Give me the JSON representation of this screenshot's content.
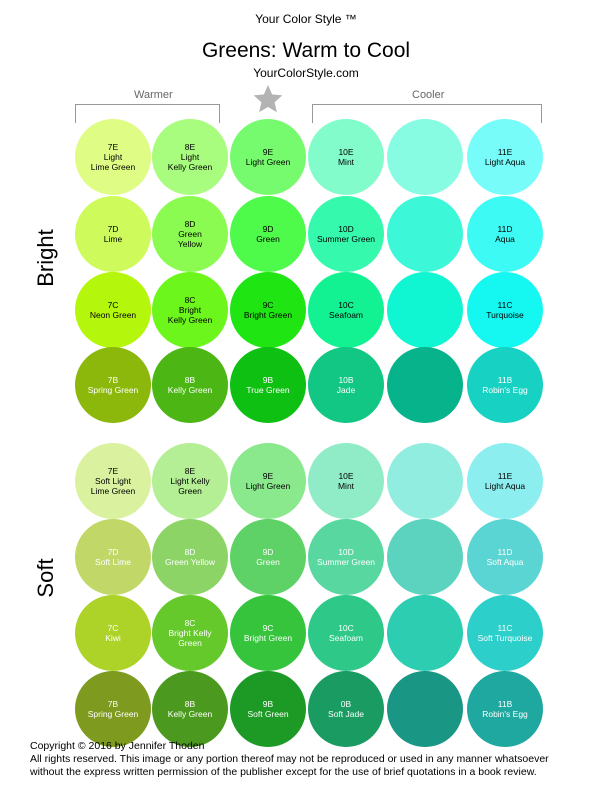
{
  "header": {
    "brand": "Your Color Style ™",
    "title": "Greens: Warm to Cool",
    "site": "YourColorStyle.com",
    "warmer_label": "Warmer",
    "cooler_label": "Cooler"
  },
  "sections": {
    "bright_label": "Bright",
    "soft_label": "Soft"
  },
  "colors": {
    "star": "#b3b3b3",
    "bracket": "#999999"
  },
  "swatches": [
    {
      "code": "7E",
      "name": "Light\nLime Green",
      "color": "#dffc85",
      "text": "#000000"
    },
    {
      "code": "8E",
      "name": "Light\nKelly Green",
      "color": "#a8fc7e",
      "text": "#000000"
    },
    {
      "code": "9E",
      "name": "Light Green",
      "color": "#77fb6e",
      "text": "#000000"
    },
    {
      "code": "10E",
      "name": "Mint",
      "color": "#82fccb",
      "text": "#000000"
    },
    {
      "code": "",
      "name": "",
      "color": "#88fce3",
      "text": "#000000"
    },
    {
      "code": "11E",
      "name": "Light Aqua",
      "color": "#78fcfa",
      "text": "#000000"
    },
    {
      "code": "7D",
      "name": "Lime",
      "color": "#cefb5b",
      "text": "#000000"
    },
    {
      "code": "8D",
      "name": "Green\nYellow",
      "color": "#8cfb51",
      "text": "#000000"
    },
    {
      "code": "9D",
      "name": "Green",
      "color": "#4efa4a",
      "text": "#000000"
    },
    {
      "code": "10D",
      "name": "Summer Green",
      "color": "#35f9ad",
      "text": "#000000"
    },
    {
      "code": "",
      "name": "",
      "color": "#3cf7d8",
      "text": "#000000"
    },
    {
      "code": "11D",
      "name": "Aqua",
      "color": "#3efaf4",
      "text": "#000000"
    },
    {
      "code": "7C",
      "name": "Neon Green",
      "color": "#b4f60c",
      "text": "#000000"
    },
    {
      "code": "8C",
      "name": "Bright\nKelly Green",
      "color": "#6cf61c",
      "text": "#000000"
    },
    {
      "code": "9C",
      "name": "Bright Green",
      "color": "#1fe513",
      "text": "#000000"
    },
    {
      "code": "10C",
      "name": "Seafoam",
      "color": "#12f293",
      "text": "#000000"
    },
    {
      "code": "",
      "name": "",
      "color": "#10f6d2",
      "text": "#000000"
    },
    {
      "code": "11C",
      "name": "Turquoise",
      "color": "#14f8f1",
      "text": "#000000"
    },
    {
      "code": "7B",
      "name": "Spring Green",
      "color": "#8cb80b",
      "text": "#ffffff"
    },
    {
      "code": "8B",
      "name": "Kelly Green",
      "color": "#4cb614",
      "text": "#ffffff"
    },
    {
      "code": "9B",
      "name": "True Green",
      "color": "#0ec012",
      "text": "#ffffff"
    },
    {
      "code": "10B",
      "name": "Jade",
      "color": "#12c683",
      "text": "#ffffff"
    },
    {
      "code": "",
      "name": "",
      "color": "#07b38b",
      "text": "#ffffff"
    },
    {
      "code": "11B",
      "name": "Robin's Egg",
      "color": "#17d1c3",
      "text": "#ffffff"
    },
    {
      "code": "7E",
      "name": "Soft Light\nLime Green",
      "color": "#daf29f",
      "text": "#000000"
    },
    {
      "code": "8E",
      "name": "Light Kelly\nGreen",
      "color": "#b4ee95",
      "text": "#000000"
    },
    {
      "code": "9E",
      "name": "Light Green",
      "color": "#8be98d",
      "text": "#000000"
    },
    {
      "code": "10E",
      "name": "Mint",
      "color": "#90ecc7",
      "text": "#000000"
    },
    {
      "code": "",
      "name": "",
      "color": "#91ede0",
      "text": "#000000"
    },
    {
      "code": "11E",
      "name": "Light Aqua",
      "color": "#8ceeee",
      "text": "#000000"
    },
    {
      "code": "7D",
      "name": "Soft Lime",
      "color": "#c1d868",
      "text": "#ffffff"
    },
    {
      "code": "8D",
      "name": "Green Yellow",
      "color": "#8dd467",
      "text": "#ffffff"
    },
    {
      "code": "9D",
      "name": "Green",
      "color": "#5ed266",
      "text": "#ffffff"
    },
    {
      "code": "10D",
      "name": "Summer Green",
      "color": "#58d7a1",
      "text": "#ffffff"
    },
    {
      "code": "",
      "name": "",
      "color": "#5bd3be",
      "text": "#ffffff"
    },
    {
      "code": "11D",
      "name": "Soft Aqua",
      "color": "#5bd5d3",
      "text": "#ffffff"
    },
    {
      "code": "7C",
      "name": "Kiwi",
      "color": "#aed328",
      "text": "#ffffff"
    },
    {
      "code": "8C",
      "name": "Bright Kelly\nGreen",
      "color": "#66c92b",
      "text": "#ffffff"
    },
    {
      "code": "9C",
      "name": "Bright Green",
      "color": "#36c43d",
      "text": "#ffffff"
    },
    {
      "code": "10C",
      "name": "Seafoam",
      "color": "#2ec989",
      "text": "#ffffff"
    },
    {
      "code": "",
      "name": "",
      "color": "#2ccdb1",
      "text": "#ffffff"
    },
    {
      "code": "11C",
      "name": "Soft Turquoise",
      "color": "#2ccfca",
      "text": "#ffffff"
    },
    {
      "code": "7B",
      "name": "Spring Green",
      "color": "#7e9a1f",
      "text": "#ffffff"
    },
    {
      "code": "8B",
      "name": "Kelly Green",
      "color": "#4b9a1f",
      "text": "#ffffff"
    },
    {
      "code": "9B",
      "name": "Soft Green",
      "color": "#1d9a25",
      "text": "#ffffff"
    },
    {
      "code": "0B",
      "name": "Soft Jade",
      "color": "#1a9b62",
      "text": "#ffffff"
    },
    {
      "code": "",
      "name": "",
      "color": "#1a9684",
      "text": "#ffffff"
    },
    {
      "code": "11B",
      "name": "Robin's Egg",
      "color": "#1fa8a0",
      "text": "#ffffff"
    }
  ],
  "footer": {
    "line1": "Copyright © 2016 by Jennifer Thoden",
    "line2": "All rights reserved. This image or any portion thereof may not be reproduced or used in any manner whatsoever",
    "line3": "without the express written permission of the publisher except for the use of brief quotations in a book review."
  }
}
